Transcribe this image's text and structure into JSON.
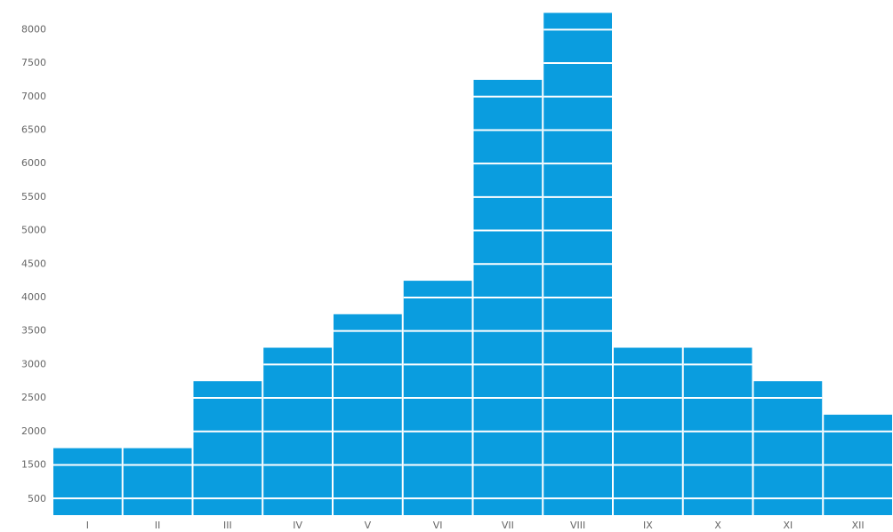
{
  "chart_data": {
    "type": "bar",
    "categories": [
      "I",
      "II",
      "III",
      "IV",
      "V",
      "VI",
      "VII",
      "VIII",
      "IX",
      "X",
      "XI",
      "XII"
    ],
    "values": [
      1750,
      1750,
      2750,
      3250,
      3750,
      4250,
      7250,
      8250,
      3250,
      3250,
      2750,
      2250
    ],
    "y_ticks": [
      500,
      1500,
      2000,
      2500,
      3000,
      3500,
      4000,
      4500,
      5000,
      5500,
      6000,
      6500,
      7000,
      7500,
      8000
    ],
    "ylim": [
      750,
      8250
    ],
    "bar_color": "#0a9ddf",
    "segment_line_color": "#ffffff",
    "title": "",
    "xlabel": "",
    "ylabel": "",
    "grid": false,
    "legend": "none"
  }
}
